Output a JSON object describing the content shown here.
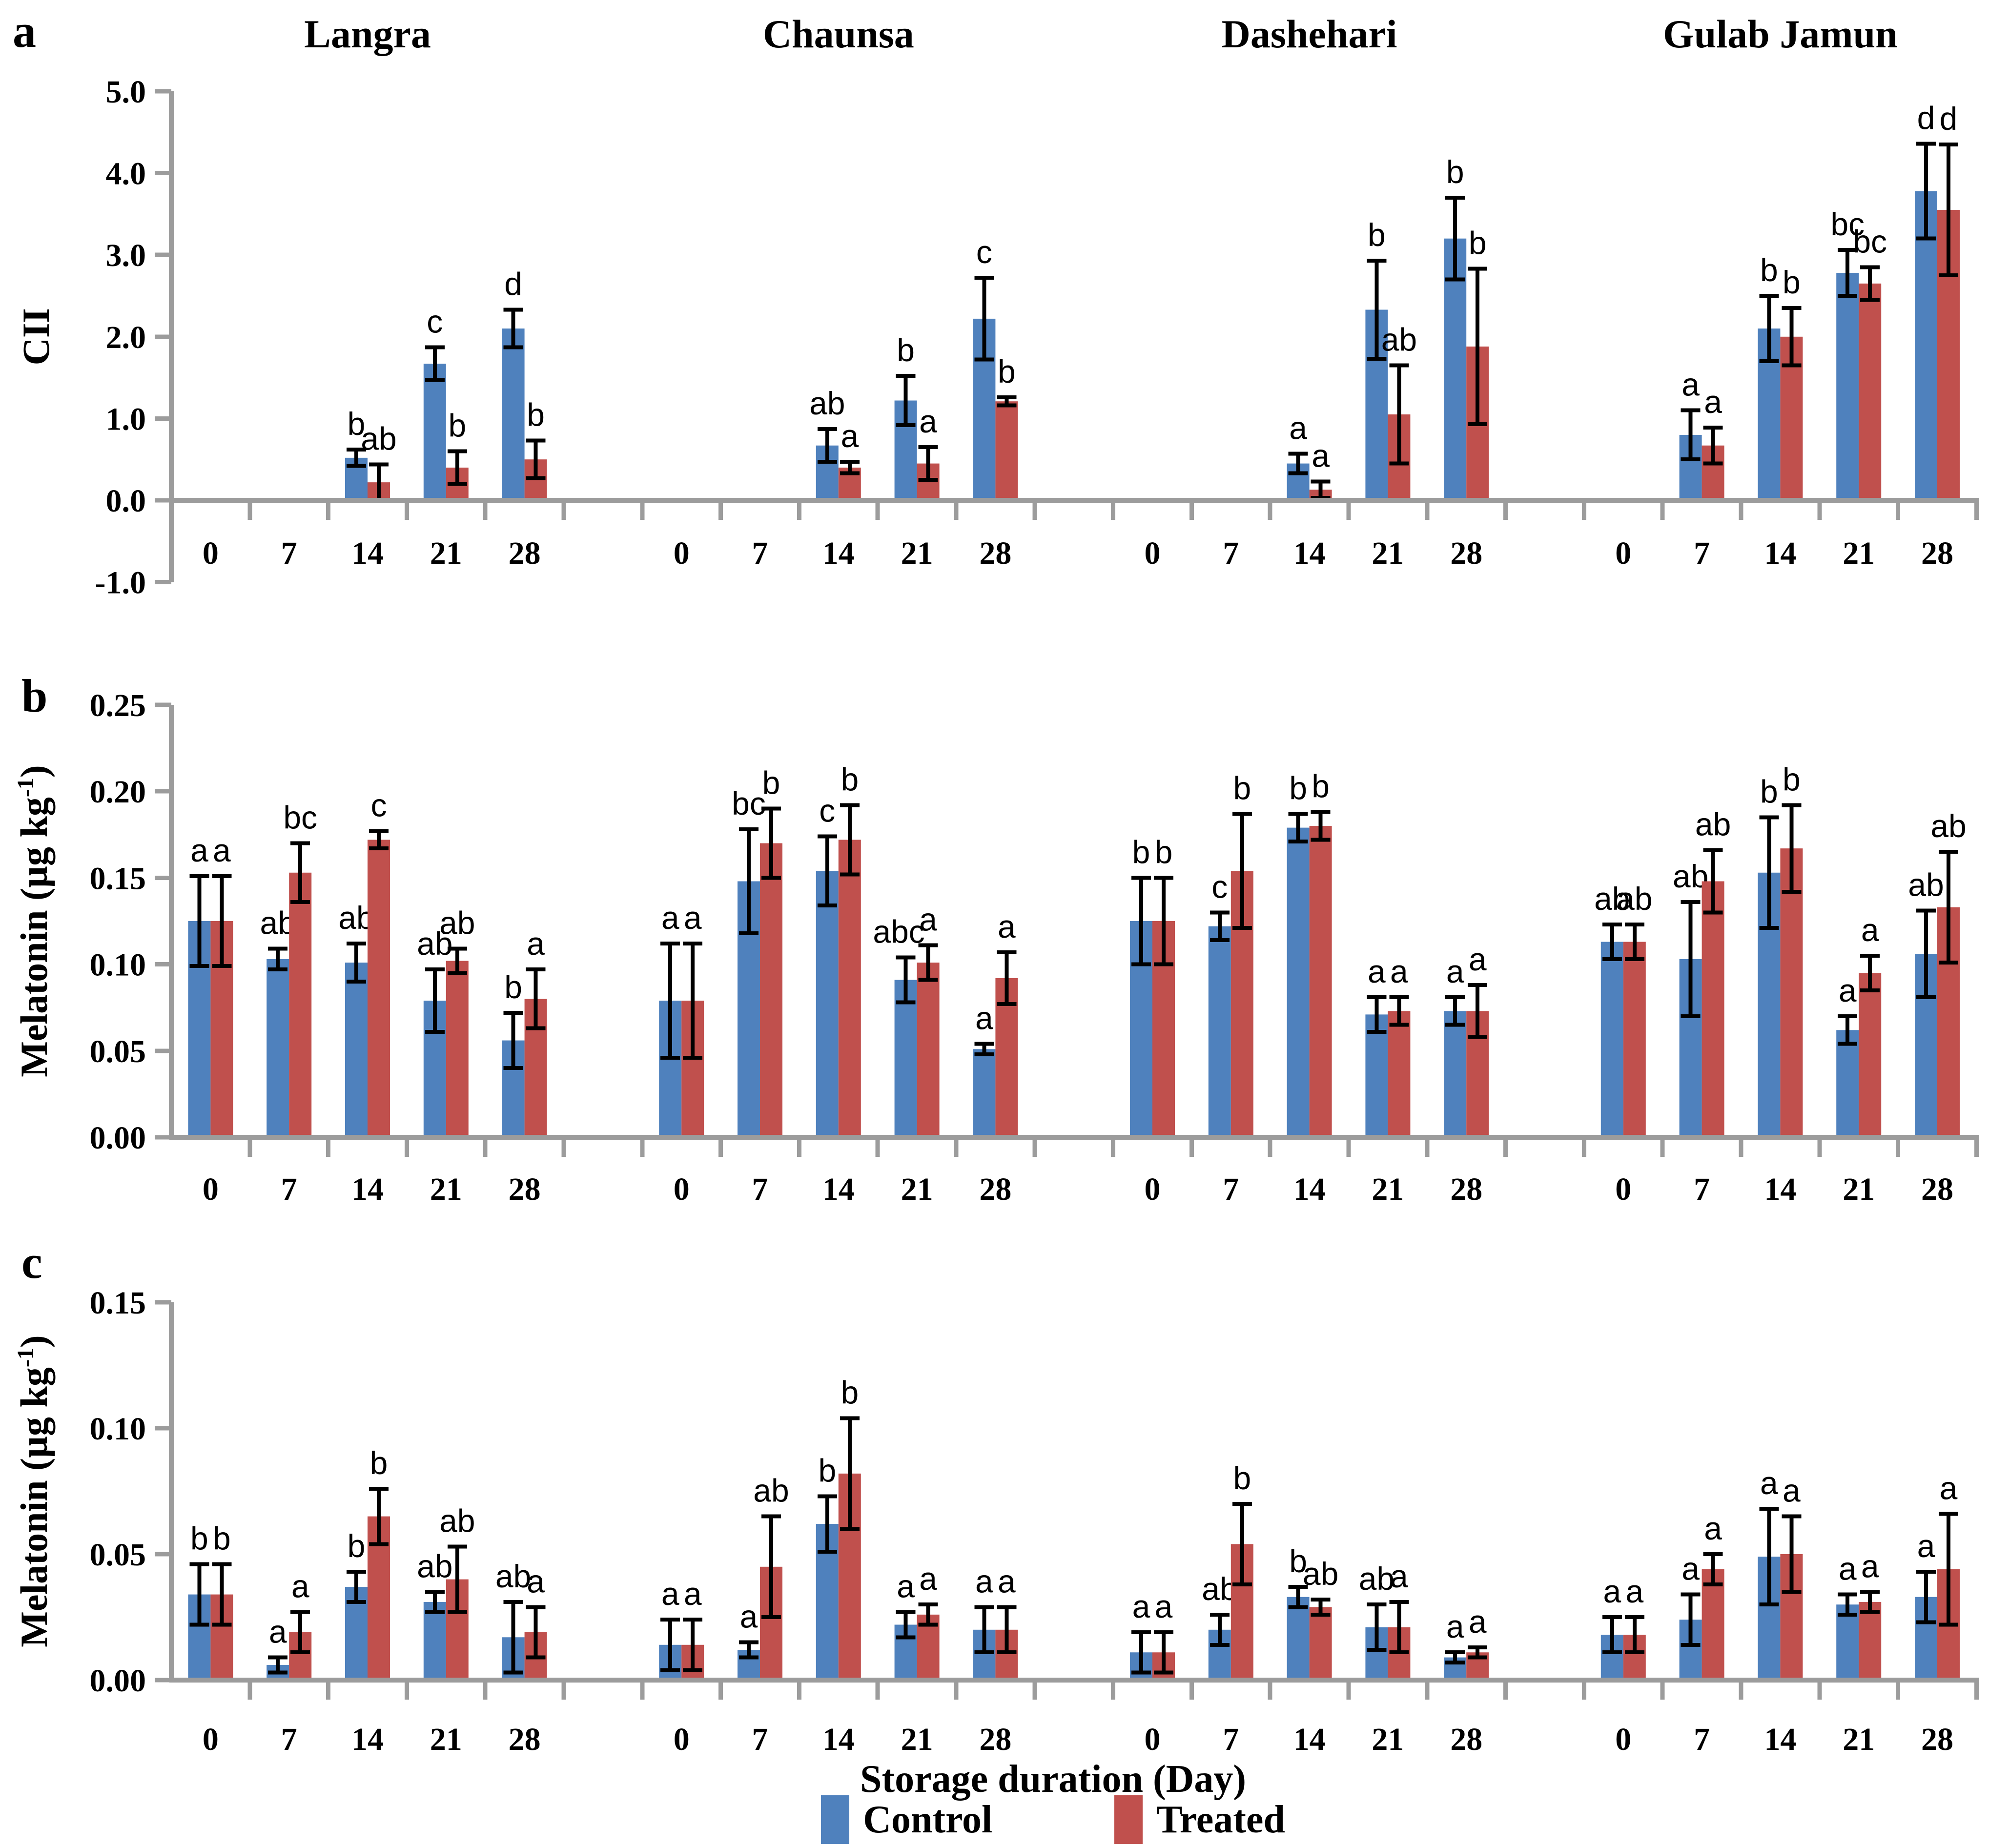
{
  "figure": {
    "panel_letters": [
      "a",
      "b",
      "c"
    ],
    "varieties": [
      "Langra",
      "Chaunsa",
      "Dashehari",
      "Gulab Jamun"
    ],
    "day_labels": [
      "0",
      "7",
      "14",
      "21",
      "28"
    ],
    "xlabel": "Storage duration (Day)",
    "legend": [
      {
        "label": "Control",
        "color": "#4F81BD"
      },
      {
        "label": "Treated",
        "color": "#C0504D"
      }
    ],
    "axis_color": "#9C9C9C",
    "error_bar_color": "#000000"
  },
  "chart_data": [
    {
      "type": "bar",
      "panel": "a",
      "ylabel": {
        "text": "CII",
        "main": "CII",
        "sup": "",
        "end": ""
      },
      "ylim": [
        -1.0,
        5.0
      ],
      "ytick_labels": [
        "5.0",
        "4.0",
        "3.0",
        "2.0",
        "1.0",
        "0.0",
        "-1.0"
      ],
      "categories": [
        "0",
        "7",
        "14",
        "21",
        "28"
      ],
      "legend_position": "none",
      "grid": false,
      "groups": [
        {
          "variety": "Langra",
          "series": [
            {
              "name": "Control",
              "values": [
                0,
                0,
                0.52,
                1.67,
                2.1
              ],
              "errors": [
                0,
                0,
                0.1,
                0.2,
                0.23
              ],
              "letters": [
                "",
                "",
                "b",
                "c",
                "d"
              ]
            },
            {
              "name": "Treated",
              "values": [
                0,
                0,
                0.22,
                0.4,
                0.5
              ],
              "errors": [
                0,
                0,
                0.22,
                0.2,
                0.23
              ],
              "letters": [
                "",
                "",
                "ab",
                "b",
                "b"
              ]
            }
          ]
        },
        {
          "variety": "Chaunsa",
          "series": [
            {
              "name": "Control",
              "values": [
                0,
                0,
                0.67,
                1.22,
                2.22
              ],
              "errors": [
                0,
                0,
                0.2,
                0.3,
                0.5
              ],
              "letters": [
                "",
                "",
                "ab",
                "b",
                "c"
              ]
            },
            {
              "name": "Treated",
              "values": [
                0,
                0,
                0.4,
                0.45,
                1.21
              ],
              "errors": [
                0,
                0,
                0.07,
                0.2,
                0.05
              ],
              "letters": [
                "",
                "",
                "a",
                "a",
                "b"
              ]
            }
          ]
        },
        {
          "variety": "Dashehari",
          "series": [
            {
              "name": "Control",
              "values": [
                0,
                0,
                0.45,
                2.33,
                3.2
              ],
              "errors": [
                0,
                0,
                0.12,
                0.6,
                0.5
              ],
              "letters": [
                "",
                "",
                "a",
                "b",
                "b"
              ]
            },
            {
              "name": "Treated",
              "values": [
                0,
                0,
                0.13,
                1.05,
                1.88
              ],
              "errors": [
                0,
                0,
                0.1,
                0.6,
                0.95
              ],
              "letters": [
                "",
                "",
                "a",
                "ab",
                "b"
              ]
            }
          ]
        },
        {
          "variety": "Gulab Jamun",
          "series": [
            {
              "name": "Control",
              "values": [
                0,
                0.8,
                2.1,
                2.78,
                3.78
              ],
              "errors": [
                0,
                0.3,
                0.4,
                0.28,
                0.58
              ],
              "letters": [
                "",
                "a",
                "b",
                "bc",
                "d"
              ]
            },
            {
              "name": "Treated",
              "values": [
                0,
                0.67,
                2.0,
                2.65,
                3.55
              ],
              "errors": [
                0,
                0.22,
                0.35,
                0.2,
                0.8
              ],
              "letters": [
                "",
                "a",
                "b",
                "bc",
                "d"
              ]
            }
          ]
        }
      ]
    },
    {
      "type": "bar",
      "panel": "b",
      "ylabel": {
        "text": "Melatonin (µg kg⁻¹)",
        "main": "Melatonin (µg kg",
        "sup": "-1",
        "end": ")"
      },
      "ylim": [
        0,
        0.25
      ],
      "ytick_labels": [
        "0.25",
        "0.20",
        "0.15",
        "0.10",
        "0.05",
        "0.00"
      ],
      "categories": [
        "0",
        "7",
        "14",
        "21",
        "28"
      ],
      "legend_position": "none",
      "grid": false,
      "groups": [
        {
          "variety": "Langra",
          "series": [
            {
              "name": "Control",
              "values": [
                0.125,
                0.103,
                0.101,
                0.079,
                0.056
              ],
              "errors": [
                0.026,
                0.006,
                0.011,
                0.018,
                0.016
              ],
              "letters": [
                "a",
                "ab",
                "ab",
                "ab",
                "b"
              ]
            },
            {
              "name": "Treated",
              "values": [
                0.125,
                0.153,
                0.172,
                0.102,
                0.08
              ],
              "errors": [
                0.026,
                0.017,
                0.005,
                0.007,
                0.017
              ],
              "letters": [
                "a",
                "bc",
                "c",
                "ab",
                "a"
              ]
            }
          ]
        },
        {
          "variety": "Chaunsa",
          "series": [
            {
              "name": "Control",
              "values": [
                0.079,
                0.148,
                0.154,
                0.091,
                0.051
              ],
              "errors": [
                0.033,
                0.03,
                0.02,
                0.013,
                0.003
              ],
              "letters": [
                "a",
                "bc",
                "c",
                "abc",
                "a"
              ]
            },
            {
              "name": "Treated",
              "values": [
                0.079,
                0.17,
                0.172,
                0.101,
                0.092
              ],
              "errors": [
                0.033,
                0.02,
                0.02,
                0.01,
                0.015
              ],
              "letters": [
                "a",
                "b",
                "b",
                "a",
                "a"
              ]
            }
          ]
        },
        {
          "variety": "Dashehari",
          "series": [
            {
              "name": "Control",
              "values": [
                0.125,
                0.122,
                0.179,
                0.071,
                0.073
              ],
              "errors": [
                0.025,
                0.008,
                0.008,
                0.01,
                0.008
              ],
              "letters": [
                "b",
                "c",
                "b",
                "a",
                "a"
              ]
            },
            {
              "name": "Treated",
              "values": [
                0.125,
                0.154,
                0.18,
                0.073,
                0.073
              ],
              "errors": [
                0.025,
                0.033,
                0.008,
                0.008,
                0.015
              ],
              "letters": [
                "b",
                "b",
                "b",
                "a",
                "a"
              ]
            }
          ]
        },
        {
          "variety": "Gulab Jamun",
          "series": [
            {
              "name": "Control",
              "values": [
                0.113,
                0.103,
                0.153,
                0.062,
                0.106
              ],
              "errors": [
                0.01,
                0.033,
                0.032,
                0.008,
                0.025
              ],
              "letters": [
                "ab",
                "ab",
                "b",
                "a",
                "ab"
              ]
            },
            {
              "name": "Treated",
              "values": [
                0.113,
                0.148,
                0.167,
                0.095,
                0.133
              ],
              "errors": [
                0.01,
                0.018,
                0.025,
                0.01,
                0.032
              ],
              "letters": [
                "ab",
                "ab",
                "b",
                "a",
                "ab"
              ]
            }
          ]
        }
      ]
    },
    {
      "type": "bar",
      "panel": "c",
      "ylabel": {
        "text": "Melatonin (µg kg⁻¹)",
        "main": "Melatonin (µg kg",
        "sup": "-1",
        "end": ")"
      },
      "ylim": [
        0,
        0.15
      ],
      "ytick_labels": [
        "0.15",
        "0.10",
        "0.05",
        "0.00"
      ],
      "categories": [
        "0",
        "7",
        "14",
        "21",
        "28"
      ],
      "legend_position": "bottom",
      "grid": false,
      "groups": [
        {
          "variety": "Langra",
          "series": [
            {
              "name": "Control",
              "values": [
                0.034,
                0.006,
                0.037,
                0.031,
                0.017
              ],
              "errors": [
                0.012,
                0.003,
                0.006,
                0.004,
                0.014
              ],
              "letters": [
                "b",
                "a",
                "b",
                "ab",
                "ab"
              ]
            },
            {
              "name": "Treated",
              "values": [
                0.034,
                0.019,
                0.065,
                0.04,
                0.019
              ],
              "errors": [
                0.012,
                0.008,
                0.011,
                0.013,
                0.01
              ],
              "letters": [
                "b",
                "a",
                "b",
                "ab",
                "a"
              ]
            }
          ]
        },
        {
          "variety": "Chaunsa",
          "series": [
            {
              "name": "Control",
              "values": [
                0.014,
                0.012,
                0.062,
                0.022,
                0.02
              ],
              "errors": [
                0.01,
                0.003,
                0.011,
                0.005,
                0.009
              ],
              "letters": [
                "a",
                "a",
                "b",
                "a",
                "a"
              ]
            },
            {
              "name": "Treated",
              "values": [
                0.014,
                0.045,
                0.082,
                0.026,
                0.02
              ],
              "errors": [
                0.01,
                0.02,
                0.022,
                0.004,
                0.009
              ],
              "letters": [
                "a",
                "ab",
                "b",
                "a",
                "a"
              ]
            }
          ]
        },
        {
          "variety": "Dashehari",
          "series": [
            {
              "name": "Control",
              "values": [
                0.011,
                0.02,
                0.033,
                0.021,
                0.009
              ],
              "errors": [
                0.008,
                0.006,
                0.004,
                0.009,
                0.002
              ],
              "letters": [
                "a",
                "ab",
                "b",
                "ab",
                "a"
              ]
            },
            {
              "name": "Treated",
              "values": [
                0.011,
                0.054,
                0.029,
                0.021,
                0.011
              ],
              "errors": [
                0.008,
                0.016,
                0.003,
                0.01,
                0.002
              ],
              "letters": [
                "a",
                "b",
                "ab",
                "a",
                "a"
              ]
            }
          ]
        },
        {
          "variety": "Gulab Jamun",
          "series": [
            {
              "name": "Control",
              "values": [
                0.018,
                0.024,
                0.049,
                0.03,
                0.033
              ],
              "errors": [
                0.007,
                0.01,
                0.019,
                0.004,
                0.01
              ],
              "letters": [
                "a",
                "a",
                "a",
                "a",
                "a"
              ]
            },
            {
              "name": "Treated",
              "values": [
                0.018,
                0.044,
                0.05,
                0.031,
                0.044
              ],
              "errors": [
                0.007,
                0.006,
                0.015,
                0.004,
                0.022
              ],
              "letters": [
                "a",
                "a",
                "a",
                "a",
                "a"
              ]
            }
          ]
        }
      ]
    }
  ]
}
